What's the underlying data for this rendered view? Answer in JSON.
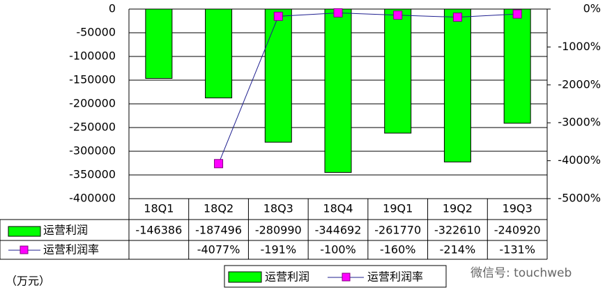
{
  "chart_data": {
    "type": "bar-line",
    "categories": [
      "18Q1",
      "18Q2",
      "18Q3",
      "18Q4",
      "19Q1",
      "19Q2",
      "19Q3"
    ],
    "series": [
      {
        "name": "运营利润",
        "color": "#00ff00",
        "values": [
          -146386,
          -187496,
          -280990,
          -344692,
          -261770,
          -322610,
          -240920
        ]
      },
      {
        "name": "运营利润率",
        "color": "#ff00ff",
        "axis": "y2",
        "values": [
          null,
          -4077,
          -191,
          -100,
          -160,
          -214,
          -131
        ],
        "value_labels": [
          null,
          "-4077%",
          "-191%",
          "-100%",
          "-160%",
          "-214%",
          "-131%"
        ]
      }
    ],
    "ylim": [
      -400000,
      0
    ],
    "yticks": [
      {
        "value": -400000,
        "label": "-400000"
      },
      {
        "value": -350000,
        "label": "-350000"
      },
      {
        "value": -300000,
        "label": "-300000"
      },
      {
        "value": -250000,
        "label": "-250000"
      },
      {
        "value": -200000,
        "label": "-200000"
      },
      {
        "value": -150000,
        "label": "-150000"
      },
      {
        "value": -100000,
        "label": "-100000"
      },
      {
        "value": -50000,
        "label": "-50000"
      },
      0
    ],
    "y2lim": [
      -5000,
      0
    ],
    "y2ticks": [
      {
        "value": -5000,
        "label": "-5000%"
      },
      {
        "value": -4000,
        "label": "-4000%"
      },
      {
        "value": -3000,
        "label": "-3000%"
      },
      {
        "value": -2000,
        "label": "-2000%"
      },
      {
        "value": -1000,
        "label": "-1000%"
      },
      {
        "value": 0,
        "label": "0%"
      }
    ],
    "grid": true,
    "unit_label": "（万元）",
    "watermark": "微信号: touchweb"
  }
}
